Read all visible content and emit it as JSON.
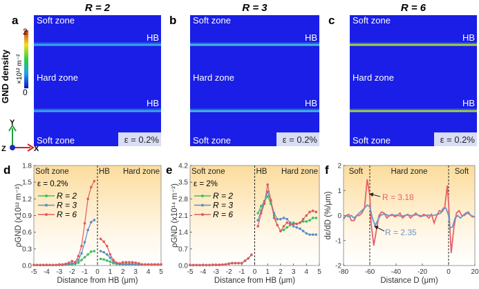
{
  "colorbar": {
    "label": "GND density",
    "unit": "×10¹² m⁻²",
    "max": "2",
    "min": "0"
  },
  "axes_glyph": {
    "x": "X",
    "y": "Y",
    "z": "Z"
  },
  "maps": [
    {
      "panel": "a",
      "title": "R = 2",
      "soft_top": "Soft zone",
      "hb1": "HB",
      "hard": "Hard zone",
      "hb2": "HB",
      "soft_bottom": "Soft zone",
      "strain": "ε = 0.2%",
      "hb_color": "#3fb8e8"
    },
    {
      "panel": "b",
      "title": "R = 3",
      "soft_top": "Soft zone",
      "hb1": "HB",
      "hard": "Hard zone",
      "hb2": "HB",
      "soft_bottom": "Soft zone",
      "strain": "ε = 0.2%",
      "hb_color": "#48d0d8"
    },
    {
      "panel": "c",
      "title": "R = 6",
      "soft_top": "Soft zone",
      "hb1": "HB",
      "hard": "Hard zone",
      "hb2": "HB",
      "soft_bottom": "Soft zone",
      "strain": "ε = 0.2%",
      "hb_color": "#b8e830"
    }
  ],
  "chart_data": [
    {
      "panel": "d",
      "type": "line",
      "ylabel": "ρGND (x10¹² m⁻²)",
      "xlabel": "Distance from HB (μm)",
      "xlim": [
        -5,
        5
      ],
      "ylim": [
        0,
        1.8
      ],
      "xticks": [
        -5,
        -4,
        -3,
        -2,
        -1,
        0,
        1,
        2,
        3,
        4,
        5
      ],
      "yticks": [
        "0.0",
        "0.3",
        "0.6",
        "0.9",
        "1.2",
        "1.5",
        "1.8"
      ],
      "zones": {
        "left": "Soft zone",
        "mid": "HB",
        "right": "Hard zone"
      },
      "annotation": "ε = 0.2%",
      "legend": "top-left",
      "x": [
        -5,
        -4.75,
        -4.5,
        -4.25,
        -4,
        -3.75,
        -3.5,
        -3.25,
        -3,
        -2.75,
        -2.5,
        -2.25,
        -2,
        -1.75,
        -1.5,
        -1.25,
        -1,
        -0.75,
        -0.5,
        -0.25,
        0.25,
        0.5,
        0.75,
        1,
        1.25,
        1.5,
        1.75,
        2,
        2.25,
        2.5,
        2.75,
        3,
        3.25,
        3.5,
        3.75,
        4,
        4.25,
        4.5,
        4.75,
        5
      ],
      "series": [
        {
          "name": "R = 2",
          "color": "#3cc060",
          "values": [
            0.01,
            0.01,
            0.01,
            0.01,
            0.01,
            0.01,
            0.01,
            0.01,
            0.01,
            0.01,
            0.02,
            0.02,
            0.02,
            0.03,
            0.05,
            0.1,
            0.15,
            0.2,
            0.25,
            0.26,
            0.12,
            0.11,
            0.09,
            0.07,
            0.04,
            0.03,
            0.02,
            0.02,
            0.02,
            0.02,
            0.02,
            0.02,
            0.02,
            0.02,
            0.02,
            0.02,
            0.02,
            0.02,
            0.02,
            0.02
          ]
        },
        {
          "name": "R = 3",
          "color": "#5b8cc8",
          "values": [
            0.01,
            0.01,
            0.01,
            0.01,
            0.01,
            0.01,
            0.01,
            0.01,
            0.02,
            0.02,
            0.02,
            0.03,
            0.04,
            0.04,
            0.1,
            0.22,
            0.42,
            0.64,
            0.78,
            0.82,
            0.26,
            0.24,
            0.2,
            0.14,
            0.07,
            0.04,
            0.03,
            0.03,
            0.03,
            0.03,
            0.03,
            0.02,
            0.02,
            0.02,
            0.02,
            0.02,
            0.02,
            0.02,
            0.02,
            0.02
          ]
        },
        {
          "name": "R = 6",
          "color": "#e05a5a",
          "values": [
            0.01,
            0.01,
            0.01,
            0.01,
            0.01,
            0.01,
            0.01,
            0.01,
            0.02,
            0.02,
            0.03,
            0.05,
            0.08,
            0.06,
            0.17,
            0.35,
            0.76,
            1.2,
            1.41,
            1.52,
            0.48,
            0.43,
            0.35,
            0.2,
            0.1,
            0.05,
            0.04,
            0.06,
            0.06,
            0.06,
            0.06,
            0.05,
            0.04,
            0.02,
            0.02,
            0.02,
            0.02,
            0.02,
            0.02,
            0.02
          ]
        }
      ]
    },
    {
      "panel": "e",
      "type": "line",
      "ylabel": "ρGND (x10¹⁴ m⁻²)",
      "xlabel": "Distance from HB (μm)",
      "xlim": [
        -5,
        5
      ],
      "ylim": [
        0,
        4.2
      ],
      "xticks": [
        -5,
        -4,
        -3,
        -2,
        -1,
        0,
        1,
        2,
        3,
        4,
        5
      ],
      "yticks": [
        "0.0",
        "0.7",
        "1.4",
        "2.1",
        "2.8",
        "3.5",
        "4.2"
      ],
      "zones": {
        "left": "Soft zone",
        "mid": "HB",
        "right": "Hard zone"
      },
      "annotation": "ε = 2%",
      "legend": "top-left",
      "x": [
        -5,
        -4.75,
        -4.5,
        -4.25,
        -4,
        -3.75,
        -3.5,
        -3.25,
        -3,
        -2.75,
        -2.5,
        -2.25,
        -2,
        -1.75,
        -1.5,
        -1.25,
        -1,
        -0.75,
        -0.5,
        -0.25,
        0.25,
        0.5,
        0.75,
        1,
        1.25,
        1.5,
        1.75,
        2,
        2.25,
        2.5,
        2.75,
        3,
        3.25,
        3.5,
        3.75,
        4,
        4.25,
        4.5,
        4.75
      ],
      "series": [
        {
          "name": "R = 2",
          "color": "#3cc060",
          "values": [
            0.02,
            0.02,
            0.02,
            0.02,
            0.02,
            0.02,
            0.02,
            0.03,
            0.03,
            0.03,
            0.04,
            0.05,
            0.08,
            0.1,
            0.1,
            0.1,
            0.1,
            0.2,
            0.3,
            0.45,
            2.2,
            2.5,
            2.7,
            2.9,
            2.6,
            2.1,
            1.7,
            1.45,
            1.5,
            1.6,
            1.7,
            1.8,
            1.75,
            1.8,
            1.85,
            1.85,
            1.9,
            2.0,
            2.0
          ]
        },
        {
          "name": "R = 3",
          "color": "#5b8cc8",
          "values": [
            0.02,
            0.02,
            0.02,
            0.02,
            0.02,
            0.02,
            0.02,
            0.03,
            0.03,
            0.03,
            0.04,
            0.05,
            0.08,
            0.1,
            0.1,
            0.1,
            0.1,
            0.2,
            0.3,
            0.45,
            1.9,
            2.3,
            2.7,
            3.1,
            2.7,
            2.2,
            1.95,
            1.95,
            2.0,
            1.95,
            1.8,
            1.65,
            1.6,
            1.55,
            1.45,
            1.35,
            1.3,
            1.3,
            1.3
          ]
        },
        {
          "name": "R = 6",
          "color": "#e05a5a",
          "values": [
            0.02,
            0.02,
            0.02,
            0.02,
            0.02,
            0.02,
            0.02,
            0.03,
            0.03,
            0.03,
            0.04,
            0.05,
            0.08,
            0.1,
            0.1,
            0.1,
            0.1,
            0.2,
            0.3,
            0.45,
            1.65,
            2.2,
            2.6,
            3.4,
            2.75,
            2.0,
            1.7,
            1.45,
            1.65,
            1.8,
            1.75,
            1.75,
            1.75,
            1.8,
            1.95,
            2.1,
            2.25,
            2.3,
            2.25
          ]
        }
      ]
    },
    {
      "panel": "f",
      "type": "line",
      "ylabel": "dε/dD (%/μm)",
      "xlabel": "Distance D (μm)",
      "xlim": [
        -80,
        20
      ],
      "ylim": [
        -2,
        2
      ],
      "xticks": [
        -80,
        -60,
        -40,
        -20,
        0,
        20
      ],
      "yticks": [
        "-2",
        "-1",
        "0",
        "1",
        "2"
      ],
      "zones": {
        "left": "Soft",
        "mid": "Hard zone",
        "right": "Soft"
      },
      "series": [
        {
          "name": "R = 3.18",
          "color": "#e8606a",
          "x": [
            -80,
            -78,
            -76,
            -74,
            -72,
            -70,
            -68,
            -66,
            -64,
            -62,
            -60,
            -59,
            -57,
            -55,
            -53,
            -51,
            -49,
            -47,
            -45,
            -43,
            -41,
            -39,
            -37,
            -35,
            -33,
            -31,
            -29,
            -27,
            -25,
            -23,
            -21,
            -19,
            -17,
            -15,
            -13,
            -11,
            -9,
            -7,
            -5,
            -3,
            -1,
            0,
            1,
            2,
            4,
            6,
            8,
            10,
            12,
            14,
            16,
            18,
            20
          ],
          "values": [
            -0.1,
            0.0,
            0.05,
            -0.2,
            -0.2,
            0.0,
            0.0,
            0.1,
            0.3,
            1.45,
            0.8,
            -0.3,
            -1.2,
            -0.6,
            0.0,
            0.15,
            0.1,
            -0.1,
            0.0,
            0.05,
            -0.05,
            0.0,
            0.1,
            -0.1,
            0.0,
            0.05,
            -0.1,
            0.0,
            0.1,
            0.0,
            -0.05,
            0.05,
            0.0,
            -0.1,
            0.05,
            -0.3,
            0.0,
            0.2,
            0.15,
            0.3,
            1.2,
            0.5,
            -0.5,
            -1.5,
            -0.5,
            0.1,
            0.2,
            0.0,
            0.0,
            0.1,
            0.05,
            -0.05,
            -0.05
          ]
        },
        {
          "name": "R = 2.35",
          "color": "#6a96c8",
          "x": [
            -80,
            -78,
            -76,
            -74,
            -72,
            -70,
            -68,
            -66,
            -64,
            -62,
            -60,
            -58,
            -56,
            -54,
            -52,
            -50,
            -48,
            -46,
            -44,
            -40,
            -36,
            -32,
            -28,
            -24,
            -20,
            -16,
            -12,
            -8,
            -6,
            -4,
            -2,
            0,
            1,
            3,
            5,
            7,
            9,
            11,
            13,
            15,
            17,
            20
          ],
          "values": [
            -0.15,
            0.0,
            -0.05,
            0.0,
            -0.1,
            0.0,
            0.1,
            0.2,
            0.3,
            0.42,
            0.35,
            -0.1,
            -0.4,
            -0.2,
            0.0,
            0.05,
            0.05,
            0.0,
            0.0,
            0.02,
            -0.03,
            0.02,
            0.0,
            0.03,
            -0.02,
            0.02,
            0.0,
            0.05,
            0.1,
            0.3,
            0.3,
            0.0,
            -0.5,
            -0.45,
            -0.1,
            0.0,
            -0.1,
            0.0,
            0.1,
            0.15,
            0.0,
            -0.05
          ]
        }
      ]
    }
  ]
}
